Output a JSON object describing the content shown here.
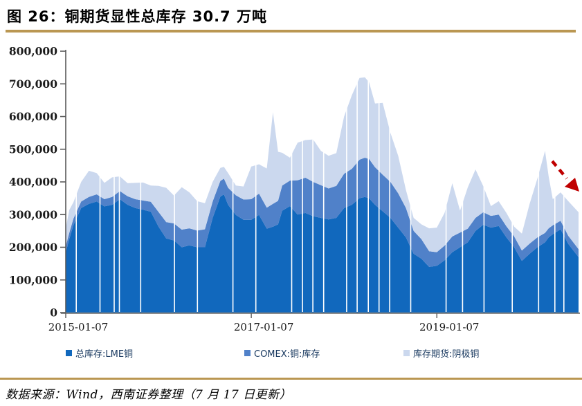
{
  "figure": {
    "title": "图 26：铜期货显性总库存 30.7 万吨",
    "source_note": "数据来源：Wind，西南证券整理（7 月 17 日更新）"
  },
  "colors": {
    "lme": "#1168BD",
    "comex": "#5081C9",
    "shfe": "#CBD8EE",
    "gold_rule": "#BA9752",
    "arrow_red": "#C00000",
    "axis_y": "#595959",
    "axis_x": "#7f7f7f",
    "tick_text": "#1a1a1a",
    "legend_text": "#17375E"
  },
  "chart_data": {
    "type": "area",
    "stacked": true,
    "title": "铜期货显性总库存 30.7 万吨",
    "xlabel": "",
    "ylabel": "",
    "ylim": [
      0,
      800000
    ],
    "ytick_step": 100000,
    "ytick_labels": [
      "0",
      "100,000",
      "200,000",
      "300,000",
      "400,000",
      "500,000",
      "600,000",
      "700,000",
      "800,000"
    ],
    "xticks": [
      "2015-01-07",
      "2017-01-07",
      "2019-01-07"
    ],
    "xtick_labels": [
      "2015-01-07",
      "2017-01-07",
      "2019-01-07"
    ],
    "grid": false,
    "legend_position": "bottom",
    "unit": "吨",
    "latest_total": 307000,
    "x": [
      "2015-01-07",
      "2015-01-21",
      "2015-02-07",
      "2015-03-07",
      "2015-04-07",
      "2015-05-07",
      "2015-06-07",
      "2015-07-07",
      "2015-08-07",
      "2015-09-07",
      "2015-10-07",
      "2015-11-07",
      "2015-12-07",
      "2016-01-07",
      "2016-02-07",
      "2016-03-07",
      "2016-04-07",
      "2016-05-07",
      "2016-06-07",
      "2016-07-07",
      "2016-08-07",
      "2016-09-07",
      "2016-09-21",
      "2016-10-07",
      "2016-11-07",
      "2016-12-07",
      "2017-01-07",
      "2017-02-07",
      "2017-03-07",
      "2017-04-01",
      "2017-04-21",
      "2017-05-07",
      "2017-06-07",
      "2017-07-07",
      "2017-08-07",
      "2017-09-07",
      "2017-10-07",
      "2017-11-07",
      "2017-12-07",
      "2018-01-07",
      "2018-02-07",
      "2018-03-07",
      "2018-03-28",
      "2018-04-14",
      "2018-05-07",
      "2018-06-07",
      "2018-07-07",
      "2018-08-07",
      "2018-09-07",
      "2018-10-07",
      "2018-11-07",
      "2018-12-07",
      "2019-01-07",
      "2019-02-07",
      "2019-03-07",
      "2019-04-07",
      "2019-05-07",
      "2019-06-07",
      "2019-07-07",
      "2019-08-07",
      "2019-09-07",
      "2019-10-07",
      "2019-11-07",
      "2019-12-07",
      "2020-01-07",
      "2020-02-07",
      "2020-03-07",
      "2020-03-21",
      "2020-04-07",
      "2020-05-07",
      "2020-06-07",
      "2020-07-17"
    ],
    "series": [
      {
        "name": "总库存:LME铜",
        "color_key": "lme",
        "values": [
          185000,
          225000,
          268000,
          320000,
          333000,
          340000,
          325000,
          330000,
          347000,
          330000,
          320000,
          315000,
          309000,
          263000,
          227000,
          221000,
          200000,
          206000,
          200000,
          200000,
          290000,
          355000,
          362000,
          330000,
          299000,
          284000,
          284000,
          299000,
          257000,
          263000,
          270000,
          312000,
          326000,
          300000,
          305000,
          295000,
          290000,
          285000,
          290000,
          320000,
          330000,
          350000,
          354000,
          350000,
          330000,
          310000,
          290000,
          260000,
          230000,
          180000,
          165000,
          140000,
          143000,
          160000,
          185000,
          200000,
          215000,
          250000,
          269000,
          260000,
          265000,
          230000,
          200000,
          158000,
          180000,
          200000,
          215000,
          230000,
          240000,
          255000,
          210000,
          170000
        ]
      },
      {
        "name": "COMEX:铜:库存",
        "color_key": "comex",
        "values": [
          18000,
          19000,
          20000,
          20000,
          21000,
          22000,
          22000,
          24000,
          25000,
          26000,
          27000,
          28000,
          30000,
          45000,
          50000,
          52000,
          54000,
          52000,
          51000,
          55000,
          50000,
          48000,
          48000,
          52000,
          60000,
          62000,
          63000,
          65000,
          64000,
          70000,
          72000,
          77000,
          78000,
          105000,
          108000,
          105000,
          100000,
          95000,
          98000,
          105000,
          110000,
          118000,
          120000,
          120000,
          115000,
          112000,
          110000,
          105000,
          90000,
          70000,
          60000,
          48000,
          42000,
          45000,
          48000,
          45000,
          42000,
          40000,
          38000,
          36000,
          35000,
          34000,
          33000,
          32000,
          31000,
          30000,
          29000,
          28000,
          27000,
          26000,
          25000,
          24000
        ]
      },
      {
        "name": "库存期货:阴极铜",
        "color_key": "shfe",
        "values": [
          55000,
          70000,
          50000,
          60000,
          80000,
          65000,
          50000,
          60000,
          45000,
          40000,
          50000,
          55000,
          50000,
          80000,
          105000,
          85000,
          130000,
          110000,
          90000,
          80000,
          60000,
          40000,
          36000,
          45000,
          30000,
          40000,
          100000,
          90000,
          120000,
          280000,
          150000,
          100000,
          70000,
          115000,
          115000,
          130000,
          105000,
          100000,
          100000,
          175000,
          225000,
          250000,
          246000,
          235000,
          195000,
          220000,
          150000,
          115000,
          55000,
          40000,
          45000,
          70000,
          75000,
          100000,
          163000,
          67000,
          126000,
          148000,
          80000,
          30000,
          41000,
          41000,
          30000,
          52000,
          122000,
          180000,
          251000,
          159000,
          80000,
          87000,
          106000,
          113000
        ]
      }
    ],
    "gap_dates": [
      "2015-02-18",
      "2015-05-20",
      "2015-07-15",
      "2015-08-05",
      "2015-10-28",
      "2016-03-09",
      "2016-06-08",
      "2016-10-26",
      "2017-01-25",
      "2017-06-14",
      "2017-07-26",
      "2017-09-06",
      "2017-10-18",
      "2018-01-17",
      "2018-02-28",
      "2018-04-11",
      "2018-05-23",
      "2018-07-04",
      "2018-09-26",
      "2019-02-13",
      "2019-04-17",
      "2019-07-10",
      "2019-10-30",
      "2020-02-12",
      "2020-04-15",
      "2020-05-20"
    ],
    "annotation": {
      "type": "trend-arrow",
      "direction": "down-right",
      "color": "#C00000",
      "note": "red dashed arrow pointing down at latest data"
    }
  },
  "legend": {
    "items": [
      {
        "label": "总库存:LME铜"
      },
      {
        "label": "COMEX:铜:库存"
      },
      {
        "label": "库存期货:阴极铜"
      }
    ]
  }
}
